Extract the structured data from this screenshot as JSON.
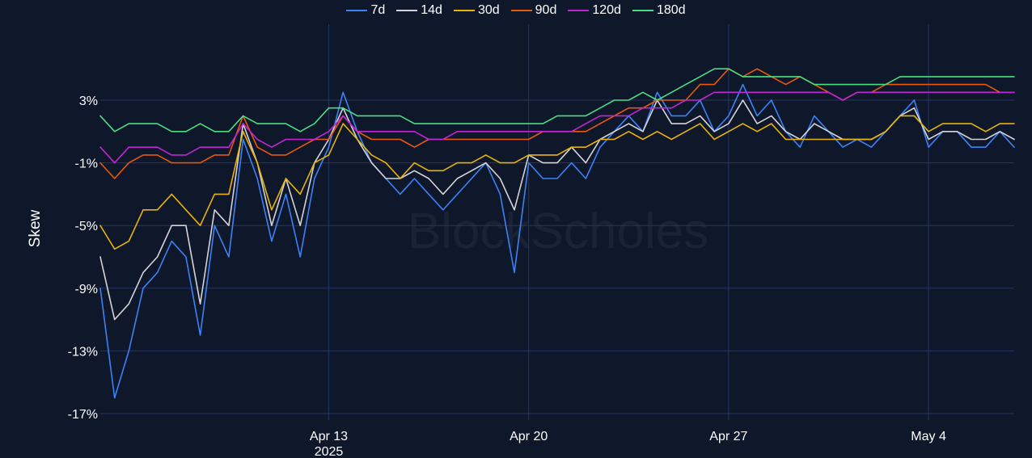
{
  "colors": {
    "background": "#0f172a",
    "grid": "#25365f",
    "text": "#ffffff",
    "watermark": "#1a2335"
  },
  "watermark": "BlockScholes",
  "chart_data": {
    "type": "line",
    "ylabel": "Skew",
    "xlabel": "",
    "ylim": [
      -17,
      6
    ],
    "yticks": [
      3,
      -1,
      -5,
      -9,
      -13,
      -17
    ],
    "ytick_labels": [
      "3%",
      "-1%",
      "-5%",
      "-9%",
      "-13%",
      "-17%"
    ],
    "xlim": [
      "2025-04-05",
      "2025-05-07"
    ],
    "xticks": [
      {
        "date": "2025-04-13",
        "label": "Apr 13",
        "sublabel": "2025"
      },
      {
        "date": "2025-04-20",
        "label": "Apr 20",
        "sublabel": ""
      },
      {
        "date": "2025-04-27",
        "label": "Apr 27",
        "sublabel": ""
      },
      {
        "date": "2025-05-04",
        "label": "May 4",
        "sublabel": ""
      }
    ],
    "grid": true,
    "legend": "top-center",
    "series": [
      {
        "name": "7d",
        "color": "#3b82f6",
        "x": [
          "2025-04-05",
          "2025-04-05 12:00",
          "2025-04-06",
          "2025-04-06 12:00",
          "2025-04-07",
          "2025-04-07 12:00",
          "2025-04-08",
          "2025-04-08 12:00",
          "2025-04-09",
          "2025-04-09 12:00",
          "2025-04-10",
          "2025-04-10 12:00",
          "2025-04-11",
          "2025-04-11 12:00",
          "2025-04-12",
          "2025-04-12 12:00",
          "2025-04-13",
          "2025-04-13 12:00",
          "2025-04-14",
          "2025-04-14 12:00",
          "2025-04-15",
          "2025-04-15 12:00",
          "2025-04-16",
          "2025-04-16 12:00",
          "2025-04-17",
          "2025-04-17 12:00",
          "2025-04-18",
          "2025-04-18 12:00",
          "2025-04-19",
          "2025-04-19 12:00",
          "2025-04-20",
          "2025-04-20 12:00",
          "2025-04-21",
          "2025-04-21 12:00",
          "2025-04-22",
          "2025-04-22 12:00",
          "2025-04-23",
          "2025-04-23 12:00",
          "2025-04-24",
          "2025-04-24 12:00",
          "2025-04-25",
          "2025-04-25 12:00",
          "2025-04-26",
          "2025-04-26 12:00",
          "2025-04-27",
          "2025-04-27 12:00",
          "2025-04-28",
          "2025-04-28 12:00",
          "2025-04-29",
          "2025-04-29 12:00",
          "2025-04-30",
          "2025-04-30 12:00",
          "2025-05-01",
          "2025-05-01 12:00",
          "2025-05-02",
          "2025-05-02 12:00",
          "2025-05-03",
          "2025-05-03 12:00",
          "2025-05-04",
          "2025-05-04 12:00",
          "2025-05-05",
          "2025-05-05 12:00",
          "2025-05-06",
          "2025-05-06 12:00",
          "2025-05-07"
        ],
        "values": [
          -9,
          -16,
          -13,
          -9,
          -8,
          -6,
          -7,
          -12,
          -5,
          -7,
          0.5,
          -2,
          -6,
          -3,
          -7,
          -2,
          0,
          3.5,
          1,
          -1,
          -2,
          -3,
          -2,
          -3,
          -4,
          -3,
          -2,
          -1,
          -3,
          -8,
          -1,
          -2,
          -2,
          -1,
          -2,
          0,
          1,
          2,
          1,
          3.5,
          2,
          2,
          3,
          1,
          2,
          4,
          2,
          3,
          1,
          0,
          2,
          1,
          0,
          0.5,
          0,
          1,
          2,
          3,
          0,
          1,
          1,
          0,
          0,
          1,
          0
        ]
      },
      {
        "name": "14d",
        "color": "#d4d4d8",
        "x": [
          "2025-04-05",
          "2025-04-05 12:00",
          "2025-04-06",
          "2025-04-06 12:00",
          "2025-04-07",
          "2025-04-07 12:00",
          "2025-04-08",
          "2025-04-08 12:00",
          "2025-04-09",
          "2025-04-09 12:00",
          "2025-04-10",
          "2025-04-10 12:00",
          "2025-04-11",
          "2025-04-11 12:00",
          "2025-04-12",
          "2025-04-12 12:00",
          "2025-04-13",
          "2025-04-13 12:00",
          "2025-04-14",
          "2025-04-14 12:00",
          "2025-04-15",
          "2025-04-15 12:00",
          "2025-04-16",
          "2025-04-16 12:00",
          "2025-04-17",
          "2025-04-17 12:00",
          "2025-04-18",
          "2025-04-18 12:00",
          "2025-04-19",
          "2025-04-19 12:00",
          "2025-04-20",
          "2025-04-20 12:00",
          "2025-04-21",
          "2025-04-21 12:00",
          "2025-04-22",
          "2025-04-22 12:00",
          "2025-04-23",
          "2025-04-23 12:00",
          "2025-04-24",
          "2025-04-24 12:00",
          "2025-04-25",
          "2025-04-25 12:00",
          "2025-04-26",
          "2025-04-26 12:00",
          "2025-04-27",
          "2025-04-27 12:00",
          "2025-04-28",
          "2025-04-28 12:00",
          "2025-04-29",
          "2025-04-29 12:00",
          "2025-04-30",
          "2025-04-30 12:00",
          "2025-05-01",
          "2025-05-01 12:00",
          "2025-05-02",
          "2025-05-02 12:00",
          "2025-05-03",
          "2025-05-03 12:00",
          "2025-05-04",
          "2025-05-04 12:00",
          "2025-05-05",
          "2025-05-05 12:00",
          "2025-05-06",
          "2025-05-06 12:00",
          "2025-05-07"
        ],
        "values": [
          -7,
          -11,
          -10,
          -8,
          -7,
          -5,
          -5,
          -10,
          -4,
          -5,
          1.5,
          -1,
          -5,
          -2,
          -5,
          -1,
          0.5,
          2.5,
          0.5,
          -1,
          -2,
          -2,
          -1.5,
          -2,
          -3,
          -2,
          -1.5,
          -1,
          -2,
          -4,
          -0.5,
          -1,
          -1,
          0,
          -1,
          0.5,
          1,
          1.5,
          1,
          3,
          1.5,
          1.5,
          2,
          1,
          1.5,
          3,
          1.5,
          2,
          1,
          0.5,
          1.5,
          1,
          0.5,
          0.5,
          0.5,
          1,
          2,
          2.5,
          0.5,
          1,
          1,
          0.5,
          0.5,
          1,
          0.5
        ]
      },
      {
        "name": "30d",
        "color": "#eab308",
        "x": [
          "2025-04-05",
          "2025-04-05 12:00",
          "2025-04-06",
          "2025-04-06 12:00",
          "2025-04-07",
          "2025-04-07 12:00",
          "2025-04-08",
          "2025-04-08 12:00",
          "2025-04-09",
          "2025-04-09 12:00",
          "2025-04-10",
          "2025-04-10 12:00",
          "2025-04-11",
          "2025-04-11 12:00",
          "2025-04-12",
          "2025-04-12 12:00",
          "2025-04-13",
          "2025-04-13 12:00",
          "2025-04-14",
          "2025-04-14 12:00",
          "2025-04-15",
          "2025-04-15 12:00",
          "2025-04-16",
          "2025-04-16 12:00",
          "2025-04-17",
          "2025-04-17 12:00",
          "2025-04-18",
          "2025-04-18 12:00",
          "2025-04-19",
          "2025-04-19 12:00",
          "2025-04-20",
          "2025-04-20 12:00",
          "2025-04-21",
          "2025-04-21 12:00",
          "2025-04-22",
          "2025-04-22 12:00",
          "2025-04-23",
          "2025-04-23 12:00",
          "2025-04-24",
          "2025-04-24 12:00",
          "2025-04-25",
          "2025-04-25 12:00",
          "2025-04-26",
          "2025-04-26 12:00",
          "2025-04-27",
          "2025-04-27 12:00",
          "2025-04-28",
          "2025-04-28 12:00",
          "2025-04-29",
          "2025-04-29 12:00",
          "2025-04-30",
          "2025-04-30 12:00",
          "2025-05-01",
          "2025-05-01 12:00",
          "2025-05-02",
          "2025-05-02 12:00",
          "2025-05-03",
          "2025-05-03 12:00",
          "2025-05-04",
          "2025-05-04 12:00",
          "2025-05-05",
          "2025-05-05 12:00",
          "2025-05-06",
          "2025-05-06 12:00",
          "2025-05-07"
        ],
        "values": [
          -5,
          -6.5,
          -6,
          -4,
          -4,
          -3,
          -4,
          -5,
          -3,
          -3,
          1,
          -1,
          -4,
          -2,
          -3,
          -1,
          -0.5,
          1.5,
          0.5,
          -0.5,
          -1,
          -2,
          -1,
          -1.5,
          -1.5,
          -1,
          -1,
          -0.5,
          -1,
          -1,
          -0.5,
          -0.5,
          -0.5,
          0,
          0,
          0.5,
          0.5,
          1,
          0.5,
          1,
          0.5,
          1,
          1.5,
          0.5,
          1,
          1.5,
          1,
          1.5,
          0.5,
          0.5,
          0.5,
          0.5,
          0.5,
          0.5,
          0.5,
          1,
          2,
          2,
          1,
          1.5,
          1.5,
          1.5,
          1,
          1.5,
          1.5
        ]
      },
      {
        "name": "90d",
        "color": "#ea580c",
        "x": [
          "2025-04-05",
          "2025-04-05 12:00",
          "2025-04-06",
          "2025-04-06 12:00",
          "2025-04-07",
          "2025-04-07 12:00",
          "2025-04-08",
          "2025-04-08 12:00",
          "2025-04-09",
          "2025-04-09 12:00",
          "2025-04-10",
          "2025-04-10 12:00",
          "2025-04-11",
          "2025-04-11 12:00",
          "2025-04-12",
          "2025-04-12 12:00",
          "2025-04-13",
          "2025-04-13 12:00",
          "2025-04-14",
          "2025-04-14 12:00",
          "2025-04-15",
          "2025-04-15 12:00",
          "2025-04-16",
          "2025-04-16 12:00",
          "2025-04-17",
          "2025-04-17 12:00",
          "2025-04-18",
          "2025-04-18 12:00",
          "2025-04-19",
          "2025-04-19 12:00",
          "2025-04-20",
          "2025-04-20 12:00",
          "2025-04-21",
          "2025-04-21 12:00",
          "2025-04-22",
          "2025-04-22 12:00",
          "2025-04-23",
          "2025-04-23 12:00",
          "2025-04-24",
          "2025-04-24 12:00",
          "2025-04-25",
          "2025-04-25 12:00",
          "2025-04-26",
          "2025-04-26 12:00",
          "2025-04-27",
          "2025-04-27 12:00",
          "2025-04-28",
          "2025-04-28 12:00",
          "2025-04-29",
          "2025-04-29 12:00",
          "2025-04-30",
          "2025-04-30 12:00",
          "2025-05-01",
          "2025-05-01 12:00",
          "2025-05-02",
          "2025-05-02 12:00",
          "2025-05-03",
          "2025-05-03 12:00",
          "2025-05-04",
          "2025-05-04 12:00",
          "2025-05-05",
          "2025-05-05 12:00",
          "2025-05-06",
          "2025-05-06 12:00",
          "2025-05-07"
        ],
        "values": [
          -1,
          -2,
          -1,
          -0.5,
          -0.5,
          -1,
          -1,
          -1,
          -0.5,
          -0.5,
          2,
          0,
          -0.5,
          -0.5,
          0,
          0.5,
          0.5,
          2,
          1,
          0.5,
          0.5,
          0.5,
          0,
          0.5,
          0.5,
          0.5,
          0.5,
          0.5,
          0.5,
          0.5,
          0.5,
          1,
          1,
          1,
          1,
          1.5,
          2,
          2.5,
          2.5,
          3,
          3,
          3,
          4,
          4,
          5,
          4.5,
          5,
          4.5,
          4,
          4.5,
          4,
          3.5,
          3,
          3.5,
          3.5,
          4,
          4,
          4,
          4,
          4,
          4,
          4,
          4,
          3.5,
          3.5
        ]
      },
      {
        "name": "120d",
        "color": "#c026d3",
        "x": [
          "2025-04-05",
          "2025-04-05 12:00",
          "2025-04-06",
          "2025-04-06 12:00",
          "2025-04-07",
          "2025-04-07 12:00",
          "2025-04-08",
          "2025-04-08 12:00",
          "2025-04-09",
          "2025-04-09 12:00",
          "2025-04-10",
          "2025-04-10 12:00",
          "2025-04-11",
          "2025-04-11 12:00",
          "2025-04-12",
          "2025-04-12 12:00",
          "2025-04-13",
          "2025-04-13 12:00",
          "2025-04-14",
          "2025-04-14 12:00",
          "2025-04-15",
          "2025-04-15 12:00",
          "2025-04-16",
          "2025-04-16 12:00",
          "2025-04-17",
          "2025-04-17 12:00",
          "2025-04-18",
          "2025-04-18 12:00",
          "2025-04-19",
          "2025-04-19 12:00",
          "2025-04-20",
          "2025-04-20 12:00",
          "2025-04-21",
          "2025-04-21 12:00",
          "2025-04-22",
          "2025-04-22 12:00",
          "2025-04-23",
          "2025-04-23 12:00",
          "2025-04-24",
          "2025-04-24 12:00",
          "2025-04-25",
          "2025-04-25 12:00",
          "2025-04-26",
          "2025-04-26 12:00",
          "2025-04-27",
          "2025-04-27 12:00",
          "2025-04-28",
          "2025-04-28 12:00",
          "2025-04-29",
          "2025-04-29 12:00",
          "2025-04-30",
          "2025-04-30 12:00",
          "2025-05-01",
          "2025-05-01 12:00",
          "2025-05-02",
          "2025-05-02 12:00",
          "2025-05-03",
          "2025-05-03 12:00",
          "2025-05-04",
          "2025-05-04 12:00",
          "2025-05-05",
          "2025-05-05 12:00",
          "2025-05-06",
          "2025-05-06 12:00",
          "2025-05-07"
        ],
        "values": [
          0,
          -1,
          0,
          0,
          0,
          -0.5,
          -0.5,
          0,
          0,
          0,
          1.5,
          0.5,
          0,
          0.5,
          0.5,
          0.5,
          1,
          2,
          1,
          1,
          1,
          1,
          1,
          0.5,
          0.5,
          1,
          1,
          1,
          1,
          1,
          1,
          1,
          1,
          1,
          1.5,
          2,
          2,
          2,
          2.5,
          2.5,
          2.5,
          3,
          3,
          3.5,
          3.5,
          3.5,
          3.5,
          3.5,
          3.5,
          3.5,
          3.5,
          3.5,
          3,
          3.5,
          3.5,
          3.5,
          3.5,
          3.5,
          3.5,
          3.5,
          3.5,
          3.5,
          3.5,
          3.5,
          3.5
        ]
      },
      {
        "name": "180d",
        "color": "#4ade80",
        "x": [
          "2025-04-05",
          "2025-04-05 12:00",
          "2025-04-06",
          "2025-04-06 12:00",
          "2025-04-07",
          "2025-04-07 12:00",
          "2025-04-08",
          "2025-04-08 12:00",
          "2025-04-09",
          "2025-04-09 12:00",
          "2025-04-10",
          "2025-04-10 12:00",
          "2025-04-11",
          "2025-04-11 12:00",
          "2025-04-12",
          "2025-04-12 12:00",
          "2025-04-13",
          "2025-04-13 12:00",
          "2025-04-14",
          "2025-04-14 12:00",
          "2025-04-15",
          "2025-04-15 12:00",
          "2025-04-16",
          "2025-04-16 12:00",
          "2025-04-17",
          "2025-04-17 12:00",
          "2025-04-18",
          "2025-04-18 12:00",
          "2025-04-19",
          "2025-04-19 12:00",
          "2025-04-20",
          "2025-04-20 12:00",
          "2025-04-21",
          "2025-04-21 12:00",
          "2025-04-22",
          "2025-04-22 12:00",
          "2025-04-23",
          "2025-04-23 12:00",
          "2025-04-24",
          "2025-04-24 12:00",
          "2025-04-25",
          "2025-04-25 12:00",
          "2025-04-26",
          "2025-04-26 12:00",
          "2025-04-27",
          "2025-04-27 12:00",
          "2025-04-28",
          "2025-04-28 12:00",
          "2025-04-29",
          "2025-04-29 12:00",
          "2025-04-30",
          "2025-04-30 12:00",
          "2025-05-01",
          "2025-05-01 12:00",
          "2025-05-02",
          "2025-05-02 12:00",
          "2025-05-03",
          "2025-05-03 12:00",
          "2025-05-04",
          "2025-05-04 12:00",
          "2025-05-05",
          "2025-05-05 12:00",
          "2025-05-06",
          "2025-05-06 12:00",
          "2025-05-07"
        ],
        "values": [
          2,
          1,
          1.5,
          1.5,
          1.5,
          1,
          1,
          1.5,
          1,
          1,
          2,
          1.5,
          1.5,
          1.5,
          1,
          1.5,
          2.5,
          2.5,
          2,
          2,
          2,
          2,
          1.5,
          1.5,
          1.5,
          1.5,
          1.5,
          1.5,
          1.5,
          1.5,
          1.5,
          1.5,
          2,
          2,
          2,
          2.5,
          3,
          3,
          3.5,
          3,
          3.5,
          4,
          4.5,
          5,
          5,
          4.5,
          4.5,
          4.5,
          4.5,
          4.5,
          4,
          4,
          4,
          4,
          4,
          4,
          4.5,
          4.5,
          4.5,
          4.5,
          4.5,
          4.5,
          4.5,
          4.5,
          4.5
        ]
      }
    ]
  }
}
